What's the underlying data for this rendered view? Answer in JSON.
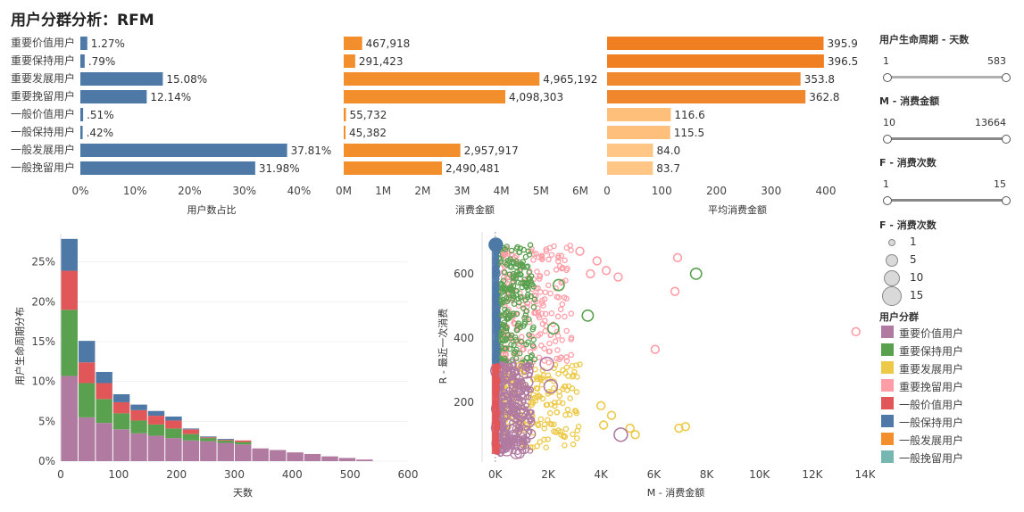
{
  "title": "用户分群分析：RFM",
  "colors": {
    "blue": "#4e79a7",
    "orange": "#f28e2b",
    "orange_dark": "#ef7f21",
    "orange_light": "#ffc685",
    "purple": "#b07aa1",
    "green": "#59a14f",
    "yellow": "#edc948",
    "pink": "#ff9da7",
    "red": "#e15759",
    "teal": "#76b7b2"
  },
  "chart_data": [
    {
      "type": "bar",
      "orientation": "horizontal",
      "categories": [
        "重要价值用户",
        "重要保持用户",
        "重要发展用户",
        "重要挽留用户",
        "一般价值用户",
        "一般保持用户",
        "一般发展用户",
        "一般挽留用户"
      ],
      "values": [
        1.27,
        0.79,
        15.08,
        12.14,
        0.51,
        0.42,
        37.81,
        31.98
      ],
      "value_labels": [
        "1.27%",
        ".79%",
        "15.08%",
        "12.14%",
        ".51%",
        ".42%",
        "37.81%",
        "31.98%"
      ],
      "xlabel": "用户数占比",
      "xlim": [
        0,
        40
      ],
      "ticks": [
        "0%",
        "10%",
        "20%",
        "30%",
        "40%"
      ],
      "color": "#4e79a7"
    },
    {
      "type": "bar",
      "orientation": "horizontal",
      "categories": [
        "重要价值用户",
        "重要保持用户",
        "重要发展用户",
        "重要挽留用户",
        "一般价值用户",
        "一般保持用户",
        "一般发展用户",
        "一般挽留用户"
      ],
      "values": [
        467918,
        291423,
        4965192,
        4098303,
        55732,
        45382,
        2957917,
        2490481
      ],
      "value_labels": [
        "467,918",
        "291,423",
        "4,965,192",
        "4,098,303",
        "55,732",
        "45,382",
        "2,957,917",
        "2,490,481"
      ],
      "xlabel": "消费金额",
      "xlim": [
        0,
        6000000
      ],
      "ticks": [
        "0M",
        "1M",
        "2M",
        "3M",
        "4M",
        "5M",
        "6M"
      ],
      "color": "#f28e2b"
    },
    {
      "type": "bar",
      "orientation": "horizontal",
      "categories": [
        "重要价值用户",
        "重要保持用户",
        "重要发展用户",
        "重要挽留用户",
        "一般价值用户",
        "一般保持用户",
        "一般发展用户",
        "一般挽留用户"
      ],
      "values": [
        395.9,
        396.5,
        353.8,
        362.8,
        116.6,
        115.5,
        84.0,
        83.7
      ],
      "value_labels": [
        "395.9",
        "396.5",
        "353.8",
        "362.8",
        "116.6",
        "115.5",
        "84.0",
        "83.7"
      ],
      "xlabel": "平均消费金额",
      "xlim": [
        0,
        400
      ],
      "ticks": [
        "0",
        "100",
        "200",
        "300",
        "400"
      ],
      "color_scale": [
        "#ffc685",
        "#ef7f21"
      ]
    },
    {
      "type": "bar",
      "stacked": true,
      "histogram": true,
      "x_bins": [
        0,
        30,
        60,
        90,
        120,
        150,
        180,
        210,
        240,
        270,
        300,
        330,
        360,
        390,
        420,
        450,
        480,
        510,
        540
      ],
      "series": [
        {
          "color": "#b07aa1",
          "values": [
            10.7,
            5.5,
            4.8,
            4.0,
            3.5,
            3.2,
            2.9,
            2.6,
            2.5,
            2.3,
            2.1,
            1.6,
            1.4,
            1.1,
            0.9,
            0.6,
            0.4,
            0.2
          ]
        },
        {
          "color": "#59a14f",
          "values": [
            8.3,
            4.3,
            3.0,
            2.0,
            1.6,
            1.4,
            1.2,
            0.8,
            0.4,
            0.3,
            0.3,
            0,
            0,
            0,
            0,
            0,
            0,
            0
          ]
        },
        {
          "color": "#e15759",
          "values": [
            4.9,
            2.6,
            2.0,
            1.4,
            1.3,
            1.1,
            1.0,
            0.6,
            0.1,
            0.1,
            0.2,
            0,
            0,
            0,
            0,
            0,
            0,
            0
          ]
        },
        {
          "color": "#4e79a7",
          "values": [
            4.0,
            2.7,
            1.4,
            1.0,
            0.7,
            0.6,
            0.5,
            0.1,
            0.1,
            0.1,
            0.0,
            0,
            0,
            0,
            0,
            0,
            0,
            0
          ]
        }
      ],
      "xlabel": "天数",
      "ylabel": "用户生命周期分布",
      "xlim": [
        0,
        600
      ],
      "ylim": [
        0,
        29
      ],
      "xticks": [
        0,
        100,
        200,
        300,
        400,
        500,
        600
      ],
      "yticks": [
        0,
        5,
        10,
        15,
        20,
        25
      ],
      "ytick_labels": [
        "0%",
        "5%",
        "10%",
        "15%",
        "20%",
        "25%"
      ]
    },
    {
      "type": "scatter",
      "xlabel": "M - 消费金额",
      "ylabel": "R - 最近一次消费",
      "xlim": [
        -500,
        14200
      ],
      "ylim": [
        15,
        730
      ],
      "xticks": [
        0,
        2000,
        4000,
        6000,
        8000,
        10000,
        12000,
        14000
      ],
      "xtick_labels": [
        "0K",
        "2K",
        "4K",
        "6K",
        "8K",
        "10K",
        "12K",
        "14K"
      ],
      "yticks": [
        200,
        400,
        600
      ],
      "outlier_points": [
        {
          "group": "重要挽留用户",
          "x": 13650,
          "y": 420,
          "f": 1
        },
        {
          "group": "重要挽留用户",
          "x": 6900,
          "y": 650,
          "f": 1
        },
        {
          "group": "重要挽留用户",
          "x": 6800,
          "y": 545,
          "f": 1
        },
        {
          "group": "重要挽留用户",
          "x": 6050,
          "y": 365,
          "f": 1
        },
        {
          "group": "重要挽留用户",
          "x": 4200,
          "y": 610,
          "f": 1
        },
        {
          "group": "重要挽留用户",
          "x": 3850,
          "y": 640,
          "f": 1
        },
        {
          "group": "重要挽留用户",
          "x": 3600,
          "y": 600,
          "f": 1
        },
        {
          "group": "重要挽留用户",
          "x": 3200,
          "y": 670,
          "f": 1
        },
        {
          "group": "重要挽留用户",
          "x": 4650,
          "y": 590,
          "f": 1
        },
        {
          "group": "重要保持用户",
          "x": 7600,
          "y": 600,
          "f": 5
        },
        {
          "group": "重要保持用户",
          "x": 3500,
          "y": 470,
          "f": 5
        },
        {
          "group": "重要保持用户",
          "x": 2400,
          "y": 565,
          "f": 5
        },
        {
          "group": "重要保持用户",
          "x": 2200,
          "y": 430,
          "f": 5
        },
        {
          "group": "重要发展用户",
          "x": 6950,
          "y": 120,
          "f": 1
        },
        {
          "group": "重要发展用户",
          "x": 7200,
          "y": 125,
          "f": 1
        },
        {
          "group": "重要发展用户",
          "x": 5300,
          "y": 100,
          "f": 1
        },
        {
          "group": "重要发展用户",
          "x": 5100,
          "y": 120,
          "f": 1
        },
        {
          "group": "重要发展用户",
          "x": 4400,
          "y": 160,
          "f": 1
        },
        {
          "group": "重要发展用户",
          "x": 4100,
          "y": 130,
          "f": 1
        },
        {
          "group": "重要发展用户",
          "x": 4000,
          "y": 190,
          "f": 1
        },
        {
          "group": "重要价值用户",
          "x": 4750,
          "y": 100,
          "f": 10
        },
        {
          "group": "重要价值用户",
          "x": 2100,
          "y": 250,
          "f": 10
        },
        {
          "group": "重要价值用户",
          "x": 1950,
          "y": 320,
          "f": 10
        },
        {
          "group": "一般保持用户",
          "x": 20,
          "y": 690,
          "f": 10
        }
      ],
      "clusters": [
        {
          "group": "重要挽留用户",
          "x_range": [
            300,
            2900
          ],
          "y_range": [
            320,
            690
          ]
        },
        {
          "group": "重要保持用户",
          "x_range": [
            80,
            1500
          ],
          "y_range": [
            320,
            690
          ]
        },
        {
          "group": "重要发展用户",
          "x_range": [
            300,
            3200
          ],
          "y_range": [
            60,
            320
          ]
        },
        {
          "group": "重要价值用户",
          "x_range": [
            80,
            1400
          ],
          "y_range": [
            40,
            320
          ]
        },
        {
          "group": "一般保持用户",
          "x_range": [
            0,
            100
          ],
          "y_range": [
            320,
            690
          ]
        },
        {
          "group": "一般价值用户",
          "x_range": [
            0,
            100
          ],
          "y_range": [
            40,
            320
          ]
        }
      ]
    }
  ],
  "filters": [
    {
      "title": "用户生命周期 - 天数",
      "min": "1",
      "max": "583",
      "grey": true
    },
    {
      "title": "M - 消费金额",
      "min": "10",
      "max": "13664",
      "grey": false
    },
    {
      "title": "F - 消费次数",
      "min": "1",
      "max": "15",
      "grey": false
    }
  ],
  "size_legend": {
    "title": "F - 消费次数",
    "items": [
      "1",
      "5",
      "10",
      "15"
    ]
  },
  "color_legend": {
    "title": "用户分群",
    "items": [
      {
        "label": "重要价值用户",
        "color": "#b07aa1"
      },
      {
        "label": "重要保持用户",
        "color": "#59a14f"
      },
      {
        "label": "重要发展用户",
        "color": "#edc948"
      },
      {
        "label": "重要挽留用户",
        "color": "#ff9da7"
      },
      {
        "label": "一般价值用户",
        "color": "#e15759"
      },
      {
        "label": "一般保持用户",
        "color": "#4e79a7"
      },
      {
        "label": "一般发展用户",
        "color": "#f28e2b"
      },
      {
        "label": "一般挽留用户",
        "color": "#76b7b2"
      }
    ]
  }
}
